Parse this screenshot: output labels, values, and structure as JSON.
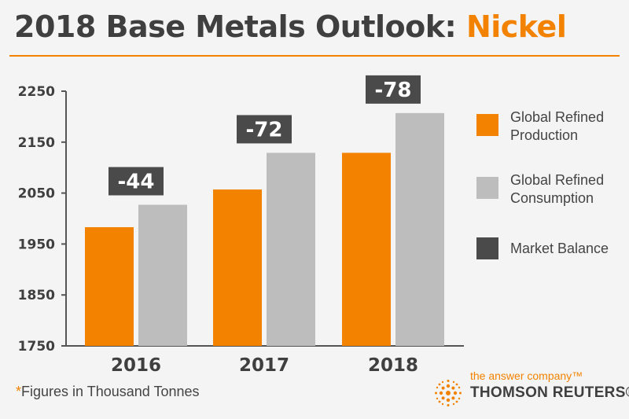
{
  "header": {
    "title_main": "2018 Base Metals Outlook:",
    "title_accent": "Nickel"
  },
  "colors": {
    "production": "#f28200",
    "consumption": "#bdbdbd",
    "balance": "#4a4a4a",
    "accent": "#f28200"
  },
  "chart_data": {
    "type": "bar",
    "title": "2018 Base Metals Outlook: Nickel",
    "categories": [
      "2016",
      "2017",
      "2018"
    ],
    "series": [
      {
        "name": "Global Refined Production",
        "values": [
          1983,
          2057,
          2129
        ]
      },
      {
        "name": "Global Refined Consumption",
        "values": [
          2027,
          2129,
          2207
        ]
      }
    ],
    "market_balance": {
      "name": "Market Balance",
      "values": [
        "-44",
        "-72",
        "-78"
      ]
    },
    "yticks": [
      "2250",
      "2150",
      "2050",
      "1950",
      "1850",
      "1750"
    ],
    "ylim": [
      1750,
      2250
    ],
    "grid": false,
    "legend_position": "right"
  },
  "footnote": {
    "star": "*",
    "text": "Figures in Thousand Tonnes"
  },
  "brand": {
    "tagline": "the answer company™",
    "name": "THOMSON REUTERS®",
    "logo_icon": "thomson-reuters-dot-logo-icon"
  }
}
